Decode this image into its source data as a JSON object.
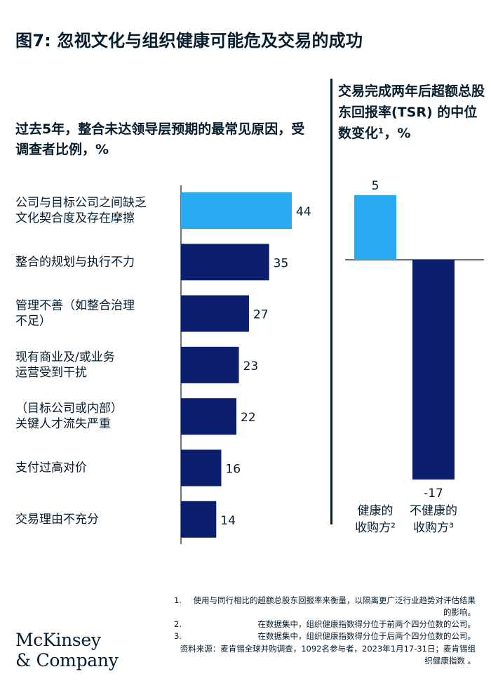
{
  "title": "图7: 忽视文化与组织健康可能危及交易的成功",
  "colors": {
    "highlight": "#29aaf2",
    "primary": "#0c1f6e",
    "ink": "#051c2c"
  },
  "chart_data": [
    {
      "type": "bar",
      "orientation": "horizontal",
      "title": "过去5年，整合未达领导层预期的最常见原因，受调查者比例，%",
      "categories": [
        [
          "公司与目标公司之间缺乏",
          "文化契合度及存在摩擦"
        ],
        [
          "整合的规划与执行不力"
        ],
        [
          "管理不善（如整合治理",
          "不足）"
        ],
        [
          "现有商业及/或业务",
          "运营受到干扰"
        ],
        [
          "（目标公司或内部）",
          "关键人才流失严重"
        ],
        [
          "支付过高对价"
        ],
        [
          "交易理由不充分"
        ]
      ],
      "values": [
        44,
        35,
        27,
        23,
        22,
        16,
        14
      ],
      "value_labels": [
        "44",
        "35",
        "27",
        "23",
        "22",
        "16",
        "14"
      ],
      "highlight_index": 0,
      "xlim": [
        0,
        60
      ]
    },
    {
      "type": "bar",
      "orientation": "vertical",
      "title": "交易完成两年后超额总股东回报率(TSR) 的中位数变化¹，%",
      "categories": [
        [
          "健康的",
          "收购方²"
        ],
        [
          "不健康的",
          "收购方³"
        ]
      ],
      "values": [
        5,
        -17
      ],
      "value_labels": [
        "5",
        "-17"
      ],
      "highlight_index": 0,
      "ylim": [
        -17,
        5
      ]
    }
  ],
  "notes": [
    {
      "num": "1.",
      "text": "使用与同行相比的超额总股东回报率来衡量，以隔离更广泛行业趋势对评估结果的影响。"
    },
    {
      "num": "2.",
      "text": "在数据集中，组织健康指数得分位于前两个四分位数的公司。"
    },
    {
      "num": "3.",
      "text": "在数据集中，组织健康指数得分位于后两个四分位数的公司。"
    }
  ],
  "source": "资料来源：麦肯锡全球并购调查，1092名参与者，2023年1月17-31日；麦肯锡组织健康指数 。",
  "logo": {
    "line1": "McKinsey",
    "line2": "& Company"
  }
}
